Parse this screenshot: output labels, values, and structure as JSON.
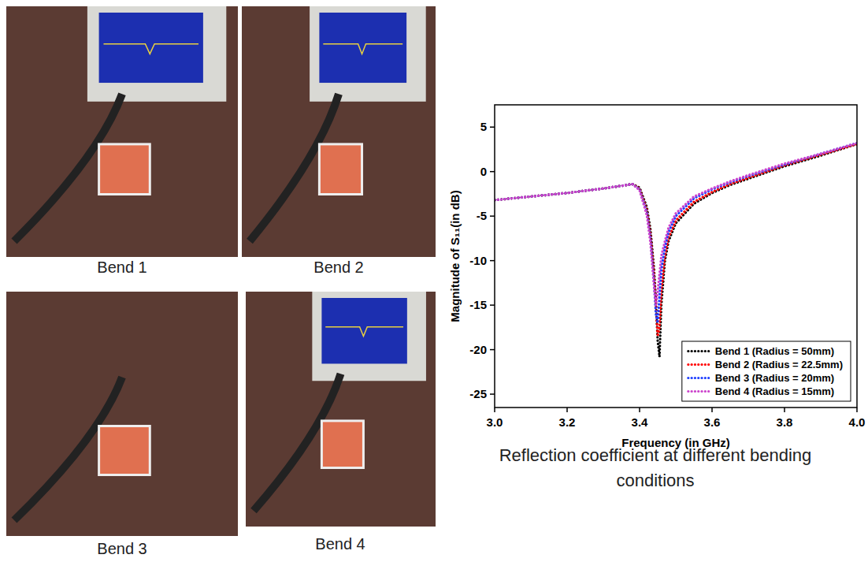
{
  "panels": [
    {
      "caption": "Bend 1"
    },
    {
      "caption": "Bend 2"
    },
    {
      "caption": "Bend 3"
    },
    {
      "caption": "Bend 4"
    }
  ],
  "caption": "Reflection coefficient at different bending conditions",
  "chart_data": {
    "type": "line",
    "x_label": "Frequency (in GHz)",
    "y_label": "Magnitude of S₁₁(in dB)",
    "x": [
      3.0,
      3.05,
      3.1,
      3.15,
      3.2,
      3.25,
      3.3,
      3.35,
      3.38,
      3.4,
      3.42,
      3.43,
      3.44,
      3.445,
      3.45,
      3.455,
      3.46,
      3.47,
      3.48,
      3.5,
      3.55,
      3.6,
      3.65,
      3.7,
      3.8,
      3.9,
      4.0
    ],
    "series": [
      {
        "name": "Bend 1 (Radius = 50mm)",
        "color": "#000000",
        "line_style": "dotted",
        "values": [
          -3.2,
          -3.0,
          -2.8,
          -2.6,
          -2.4,
          -2.15,
          -1.9,
          -1.6,
          -1.4,
          -1.8,
          -4,
          -6.5,
          -11,
          -14.5,
          -19,
          -20.8,
          -15,
          -10,
          -7.8,
          -5.8,
          -3.6,
          -2.4,
          -1.5,
          -0.8,
          0.6,
          1.8,
          3.1
        ]
      },
      {
        "name": "Bend 2 (Radius = 22.5mm)",
        "color": "#ff0000",
        "line_style": "dotted",
        "values": [
          -3.2,
          -3.0,
          -2.8,
          -2.6,
          -2.4,
          -2.15,
          -1.9,
          -1.6,
          -1.4,
          -1.9,
          -4.3,
          -7,
          -11.5,
          -15,
          -18.5,
          -17.5,
          -13.5,
          -9.5,
          -7.4,
          -5.5,
          -3.4,
          -2.3,
          -1.4,
          -0.7,
          0.7,
          1.9,
          3.1
        ]
      },
      {
        "name": "Bend 3 (Radius = 20mm)",
        "color": "#1f3fff",
        "line_style": "dotted",
        "values": [
          -3.2,
          -3.0,
          -2.8,
          -2.6,
          -2.4,
          -2.15,
          -1.9,
          -1.6,
          -1.4,
          -2.0,
          -4.6,
          -7.5,
          -12.5,
          -16,
          -17,
          -14,
          -11,
          -8.5,
          -6.8,
          -5,
          -3,
          -2,
          -1.2,
          -0.5,
          0.8,
          2.0,
          3.2
        ]
      },
      {
        "name": "Bend 4 (Radius = 15mm)",
        "color": "#cc44cc",
        "line_style": "dotted",
        "values": [
          -3.2,
          -3.0,
          -2.8,
          -2.6,
          -2.4,
          -2.15,
          -1.9,
          -1.6,
          -1.4,
          -2.1,
          -4.9,
          -8,
          -13,
          -15,
          -13.5,
          -11.5,
          -9.5,
          -7.8,
          -6.3,
          -4.7,
          -2.8,
          -1.9,
          -1.1,
          -0.4,
          0.9,
          2.0,
          3.2
        ]
      }
    ],
    "xlim": [
      3.0,
      4.0
    ],
    "xticks": [
      {
        "value": 3.0,
        "label": "3.0"
      },
      3.2,
      3.4,
      3.6,
      3.8,
      {
        "value": 4.0,
        "label": "4.0"
      }
    ],
    "ylim": [
      -26.5,
      7.5
    ],
    "yticks": [
      -25,
      -20,
      -15,
      -10,
      -5,
      0,
      5
    ],
    "grid": false,
    "legend": "lower right"
  }
}
